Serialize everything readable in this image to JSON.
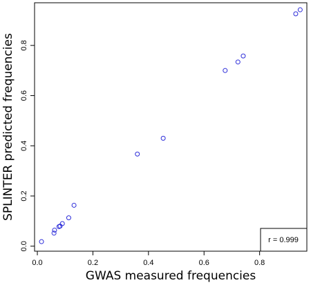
{
  "chart_data": {
    "type": "scatter",
    "title": "",
    "xlabel": "GWAS measured frequencies",
    "ylabel": "SPLINTER predicted frequencies",
    "xlim": [
      -0.01,
      0.97
    ],
    "ylim": [
      -0.02,
      0.97
    ],
    "xticks": [
      0.0,
      0.2,
      0.4,
      0.6,
      0.8
    ],
    "xtick_labels": [
      "0.0",
      "0.2",
      "0.4",
      "0.6",
      "0.8"
    ],
    "yticks": [
      0.0,
      0.2,
      0.4,
      0.6,
      0.8
    ],
    "ytick_labels": [
      "0.0",
      "0.2",
      "0.4",
      "0.6",
      "0.8"
    ],
    "grid": false,
    "legend_placement": "bottom-right",
    "annotation": "r = 0.999",
    "point_color": "#2b2bd9",
    "points": [
      {
        "x": 0.015,
        "y": 0.018
      },
      {
        "x": 0.06,
        "y": 0.052
      },
      {
        "x": 0.062,
        "y": 0.064
      },
      {
        "x": 0.078,
        "y": 0.078
      },
      {
        "x": 0.082,
        "y": 0.08
      },
      {
        "x": 0.09,
        "y": 0.09
      },
      {
        "x": 0.113,
        "y": 0.113
      },
      {
        "x": 0.132,
        "y": 0.163
      },
      {
        "x": 0.36,
        "y": 0.367
      },
      {
        "x": 0.453,
        "y": 0.43
      },
      {
        "x": 0.676,
        "y": 0.7
      },
      {
        "x": 0.722,
        "y": 0.734
      },
      {
        "x": 0.741,
        "y": 0.758
      },
      {
        "x": 0.93,
        "y": 0.926
      },
      {
        "x": 0.946,
        "y": 0.942
      }
    ]
  }
}
